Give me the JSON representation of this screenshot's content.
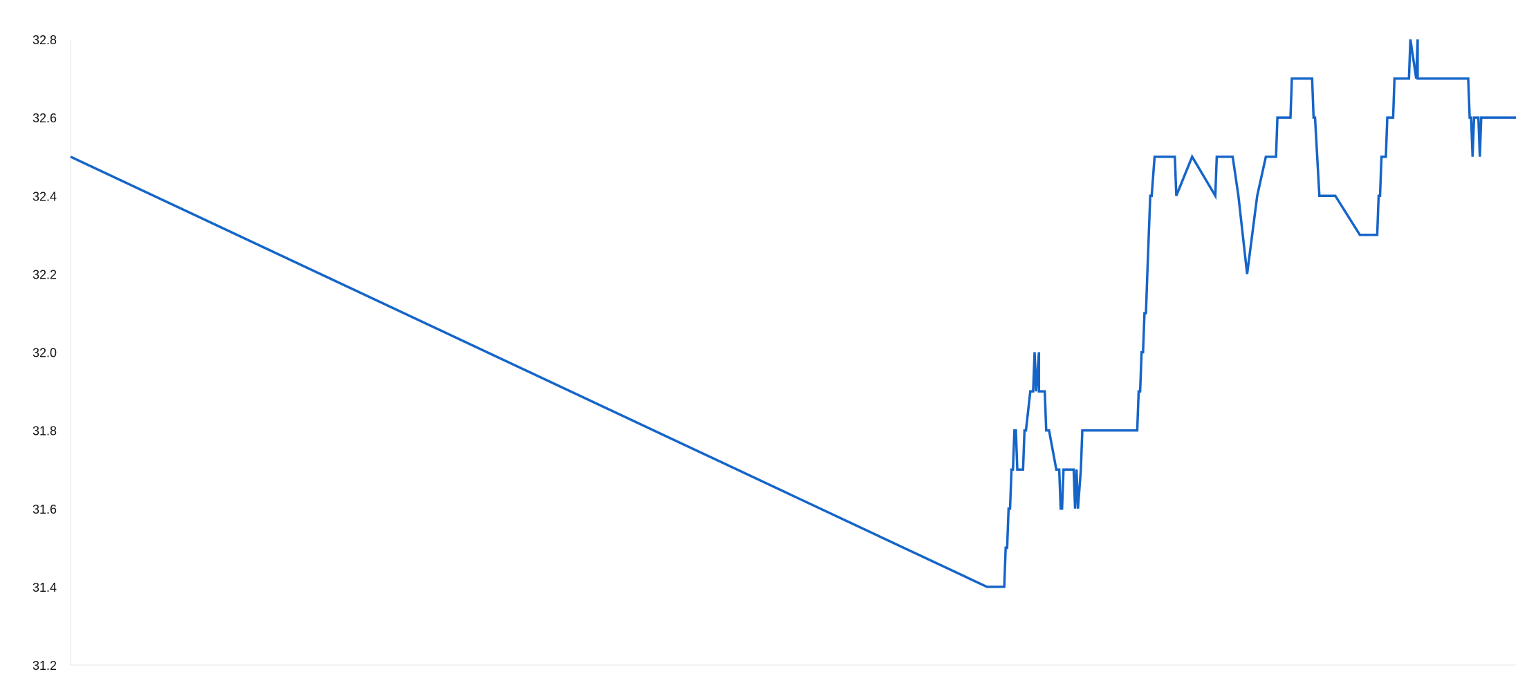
{
  "chart_data": {
    "type": "line",
    "title": "",
    "xlabel": "",
    "ylabel": "",
    "ylim": [
      31.2,
      32.8
    ],
    "yticks": [
      "32.8",
      "32.6",
      "32.4",
      "32.2",
      "32.0",
      "31.8",
      "31.6",
      "31.4",
      "31.2"
    ],
    "xlim": [
      0,
      1000
    ],
    "grid": false,
    "legend": "none",
    "series": [
      {
        "color": "#1565c8",
        "x": [
          0,
          634,
          646,
          647,
          648,
          649,
          650,
          651,
          652,
          653,
          654,
          655,
          657,
          658,
          659,
          660,
          661,
          664,
          666,
          667,
          668,
          670,
          670,
          671,
          672,
          673,
          674,
          675,
          677,
          682,
          683,
          684,
          685,
          686,
          687,
          688,
          689,
          690,
          694,
          695,
          696,
          697,
          699,
          700,
          703,
          704,
          705,
          706,
          707,
          708,
          709,
          738,
          739,
          740,
          741,
          742,
          743,
          744,
          745,
          746,
          747,
          748,
          750,
          751,
          752,
          764,
          765,
          776,
          792,
          793,
          804,
          808,
          814,
          821,
          827,
          834,
          835,
          836,
          844,
          845,
          850,
          851,
          859,
          860,
          861,
          864,
          875,
          892,
          904,
          905,
          906,
          907,
          908,
          909,
          910,
          911,
          912,
          915,
          916,
          925,
          926,
          927,
          931,
          932,
          932,
          932,
          967,
          968,
          969,
          970,
          971,
          972,
          974,
          975,
          976,
          1000
        ],
        "values": [
          32.5,
          31.4,
          31.4,
          31.5,
          31.5,
          31.6,
          31.6,
          31.7,
          31.7,
          31.8,
          31.8,
          31.7,
          31.7,
          31.7,
          31.7,
          31.8,
          31.8,
          31.9,
          31.9,
          32.0,
          31.9,
          32.0,
          31.9,
          31.9,
          31.9,
          31.9,
          31.9,
          31.8,
          31.8,
          31.7,
          31.7,
          31.7,
          31.6,
          31.6,
          31.7,
          31.7,
          31.7,
          31.7,
          31.7,
          31.6,
          31.7,
          31.6,
          31.7,
          31.8,
          31.8,
          31.8,
          31.8,
          31.8,
          31.8,
          31.8,
          31.8,
          31.8,
          31.9,
          31.9,
          32.0,
          32.0,
          32.1,
          32.1,
          32.2,
          32.3,
          32.4,
          32.4,
          32.5,
          32.5,
          32.5,
          32.5,
          32.4,
          32.5,
          32.4,
          32.5,
          32.5,
          32.4,
          32.2,
          32.4,
          32.5,
          32.5,
          32.6,
          32.6,
          32.6,
          32.7,
          32.7,
          32.7,
          32.7,
          32.6,
          32.6,
          32.4,
          32.4,
          32.3,
          32.3,
          32.4,
          32.4,
          32.5,
          32.5,
          32.5,
          32.5,
          32.6,
          32.6,
          32.6,
          32.7,
          32.7,
          32.7,
          32.8,
          32.7,
          32.8,
          32.7,
          32.7,
          32.7,
          32.6,
          32.6,
          32.5,
          32.6,
          32.6,
          32.6,
          32.5,
          32.6,
          32.6
        ]
      }
    ]
  }
}
